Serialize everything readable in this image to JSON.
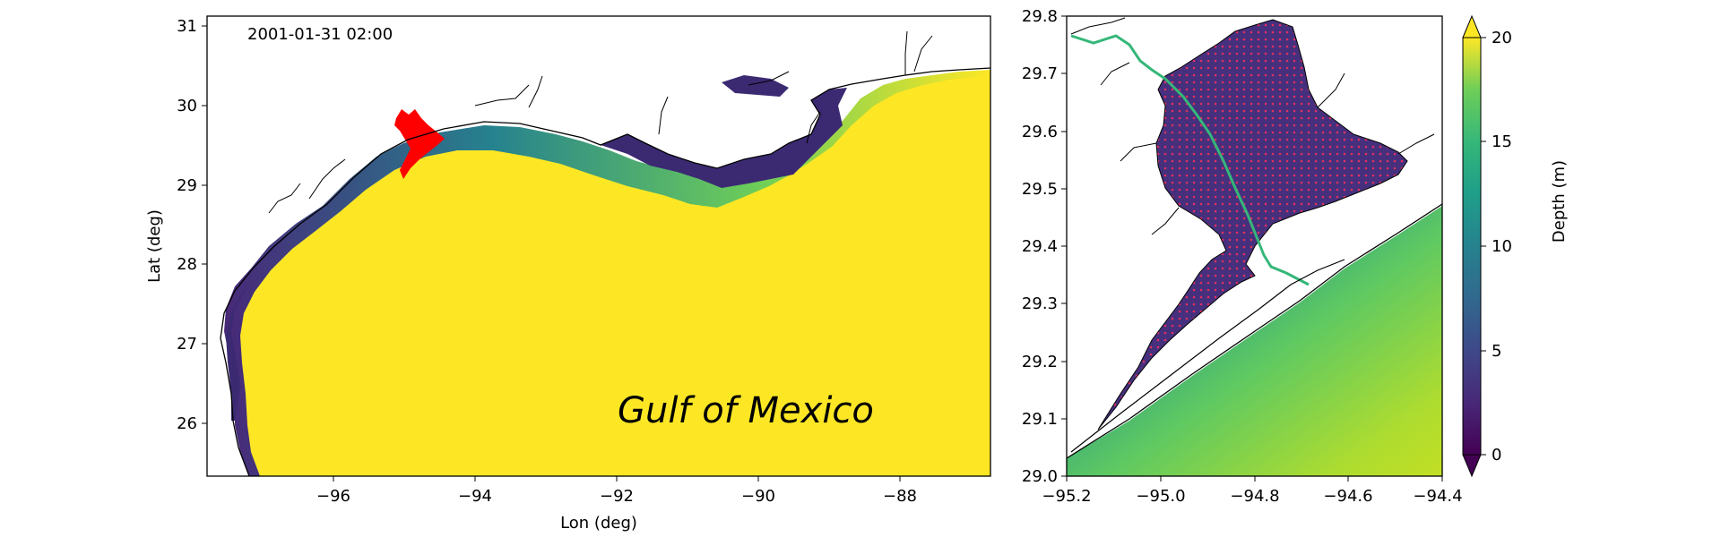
{
  "timestamp": "2001-01-31 02:00",
  "region_label": "Gulf of Mexico",
  "left_map": {
    "xlabel": "Lon (deg)",
    "ylabel": "Lat (deg)",
    "xticks": [
      "−96",
      "−94",
      "−92",
      "−90",
      "−88"
    ],
    "yticks": [
      "26",
      "27",
      "28",
      "29",
      "30",
      "31"
    ]
  },
  "right_map": {
    "xticks": [
      "−95.2",
      "−95.0",
      "−94.8",
      "−94.6",
      "−94.4"
    ],
    "yticks": [
      "29.0",
      "29.1",
      "29.2",
      "29.3",
      "29.4",
      "29.5",
      "29.6",
      "29.7",
      "29.8"
    ]
  },
  "colorbar": {
    "label": "Depth (m)",
    "ticks": [
      "0",
      "5",
      "10",
      "15",
      "20"
    ],
    "min": 0,
    "max": 20,
    "colors": [
      "#440154",
      "#482878",
      "#3e4989",
      "#31688e",
      "#26828e",
      "#1f9e89",
      "#35b779",
      "#6ece58",
      "#b5de2b",
      "#fde725"
    ]
  },
  "colors": {
    "deep_water": "#fde725",
    "highlight": "#ff0000",
    "shallow": "#3b2a72"
  }
}
